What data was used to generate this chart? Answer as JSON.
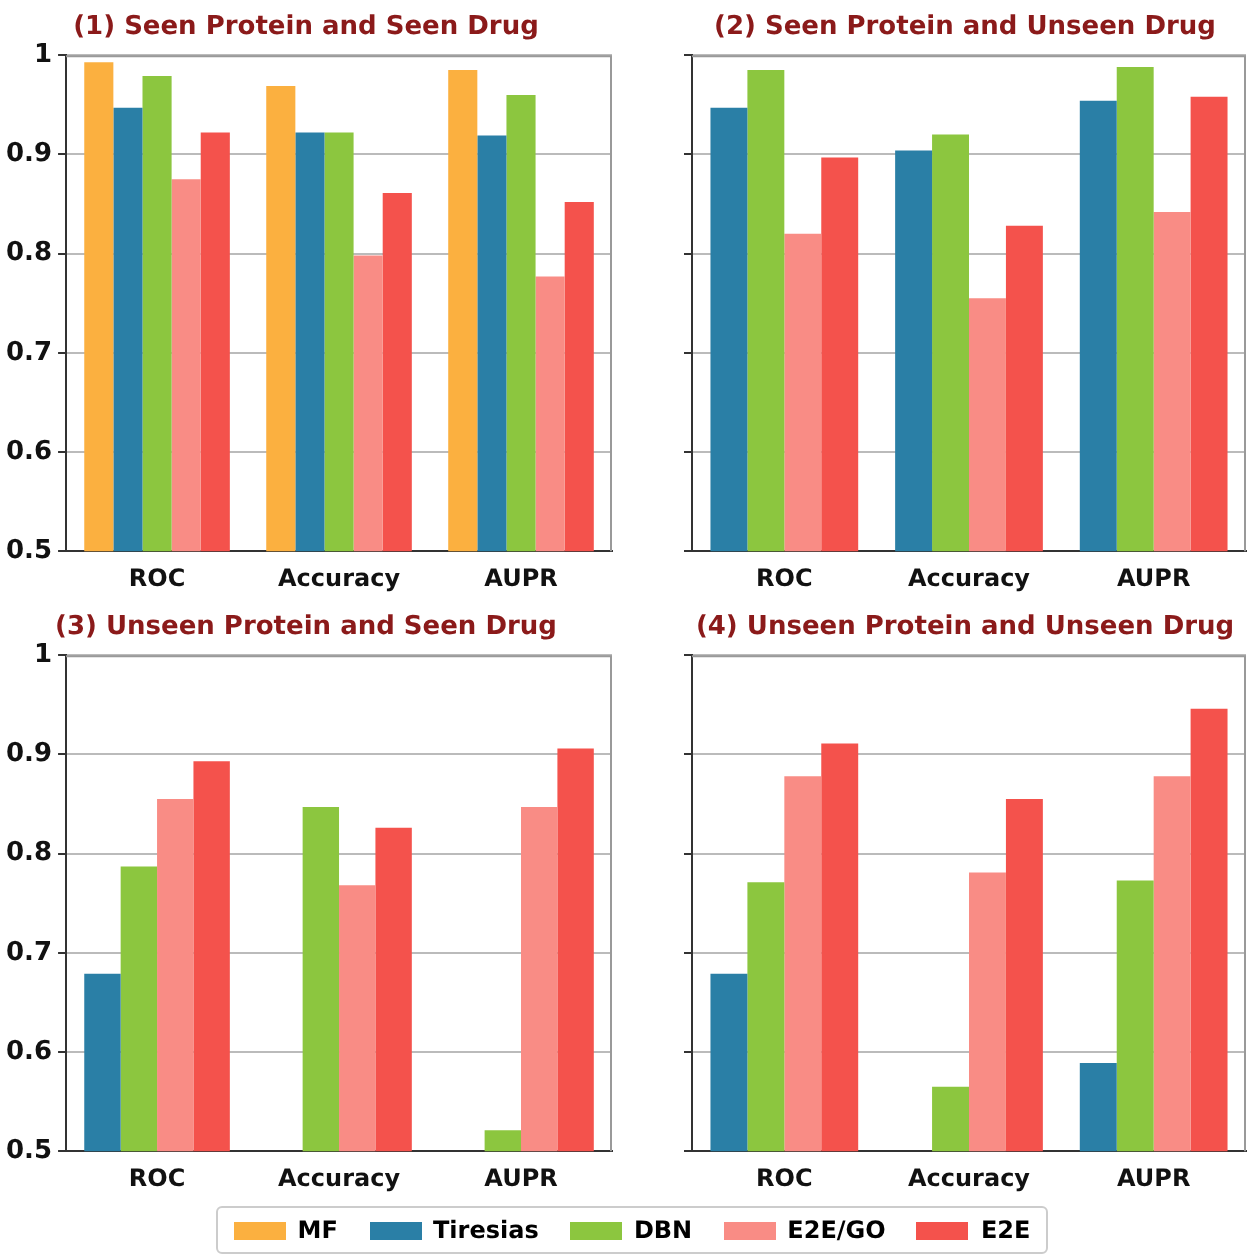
{
  "chart_data": [
    {
      "type": "bar",
      "title": "(1) Seen Protein and Seen Drug",
      "categories": [
        "ROC",
        "Accuracy",
        "AUPR"
      ],
      "series": [
        {
          "name": "MF",
          "color": "#fbb040",
          "values": [
            0.993,
            0.969,
            0.985
          ]
        },
        {
          "name": "Tiresias",
          "color": "#2a7fa6",
          "values": [
            0.947,
            0.922,
            0.919
          ]
        },
        {
          "name": "DBN",
          "color": "#8cc63f",
          "values": [
            0.979,
            0.922,
            0.96
          ]
        },
        {
          "name": "E2E/GO",
          "color": "#f98c85",
          "values": [
            0.875,
            0.798,
            0.777
          ]
        },
        {
          "name": "E2E",
          "color": "#f4524c",
          "values": [
            0.922,
            0.861,
            0.852
          ]
        }
      ],
      "ylim": [
        0.5,
        1
      ],
      "yticks": [
        0.5,
        0.6,
        0.7,
        0.8,
        0.9,
        1
      ],
      "grid": "y",
      "legend": "bottom"
    },
    {
      "type": "bar",
      "title": "(2) Seen Protein and Unseen Drug",
      "categories": [
        "ROC",
        "Accuracy",
        "AUPR"
      ],
      "series": [
        {
          "name": "Tiresias",
          "color": "#2a7fa6",
          "values": [
            0.947,
            0.904,
            0.954
          ]
        },
        {
          "name": "DBN",
          "color": "#8cc63f",
          "values": [
            0.985,
            0.92,
            0.988
          ]
        },
        {
          "name": "E2E/GO",
          "color": "#f98c85",
          "values": [
            0.82,
            0.755,
            0.842
          ]
        },
        {
          "name": "E2E",
          "color": "#f4524c",
          "values": [
            0.897,
            0.828,
            0.958
          ]
        }
      ],
      "ylim": [
        0.5,
        1
      ],
      "yticks": [
        0.5,
        0.6,
        0.7,
        0.8,
        0.9,
        1
      ],
      "grid": "y",
      "tick_labels": "x"
    },
    {
      "type": "bar",
      "title": "(3) Unseen Protein and Seen Drug",
      "categories": [
        "ROC",
        "Accuracy",
        "AUPR"
      ],
      "series": [
        {
          "name": "Tiresias",
          "color": "#2a7fa6",
          "values": [
            0.679,
            null,
            null
          ]
        },
        {
          "name": "DBN",
          "color": "#8cc63f",
          "values": [
            0.787,
            0.847,
            0.521
          ]
        },
        {
          "name": "E2E/GO",
          "color": "#f98c85",
          "values": [
            0.855,
            0.768,
            0.847
          ]
        },
        {
          "name": "E2E",
          "color": "#f4524c",
          "values": [
            0.893,
            0.826,
            0.906
          ]
        }
      ],
      "ylim": [
        0.5,
        1
      ],
      "yticks": [
        0.5,
        0.6,
        0.7,
        0.8,
        0.9,
        1
      ],
      "grid": "y"
    },
    {
      "type": "bar",
      "title": "(4) Unseen Protein and Unseen Drug",
      "categories": [
        "ROC",
        "Accuracy",
        "AUPR"
      ],
      "series": [
        {
          "name": "Tiresias",
          "color": "#2a7fa6",
          "values": [
            0.679,
            null,
            0.589
          ]
        },
        {
          "name": "DBN",
          "color": "#8cc63f",
          "values": [
            0.771,
            0.565,
            0.773
          ]
        },
        {
          "name": "E2E/GO",
          "color": "#f98c85",
          "values": [
            0.878,
            0.781,
            0.878
          ]
        },
        {
          "name": "E2E",
          "color": "#f4524c",
          "values": [
            0.911,
            0.855,
            0.946
          ]
        }
      ],
      "ylim": [
        0.5,
        1
      ],
      "yticks": [
        0.5,
        0.6,
        0.7,
        0.8,
        0.9,
        1
      ],
      "grid": "y",
      "tick_labels": "x"
    }
  ]
}
